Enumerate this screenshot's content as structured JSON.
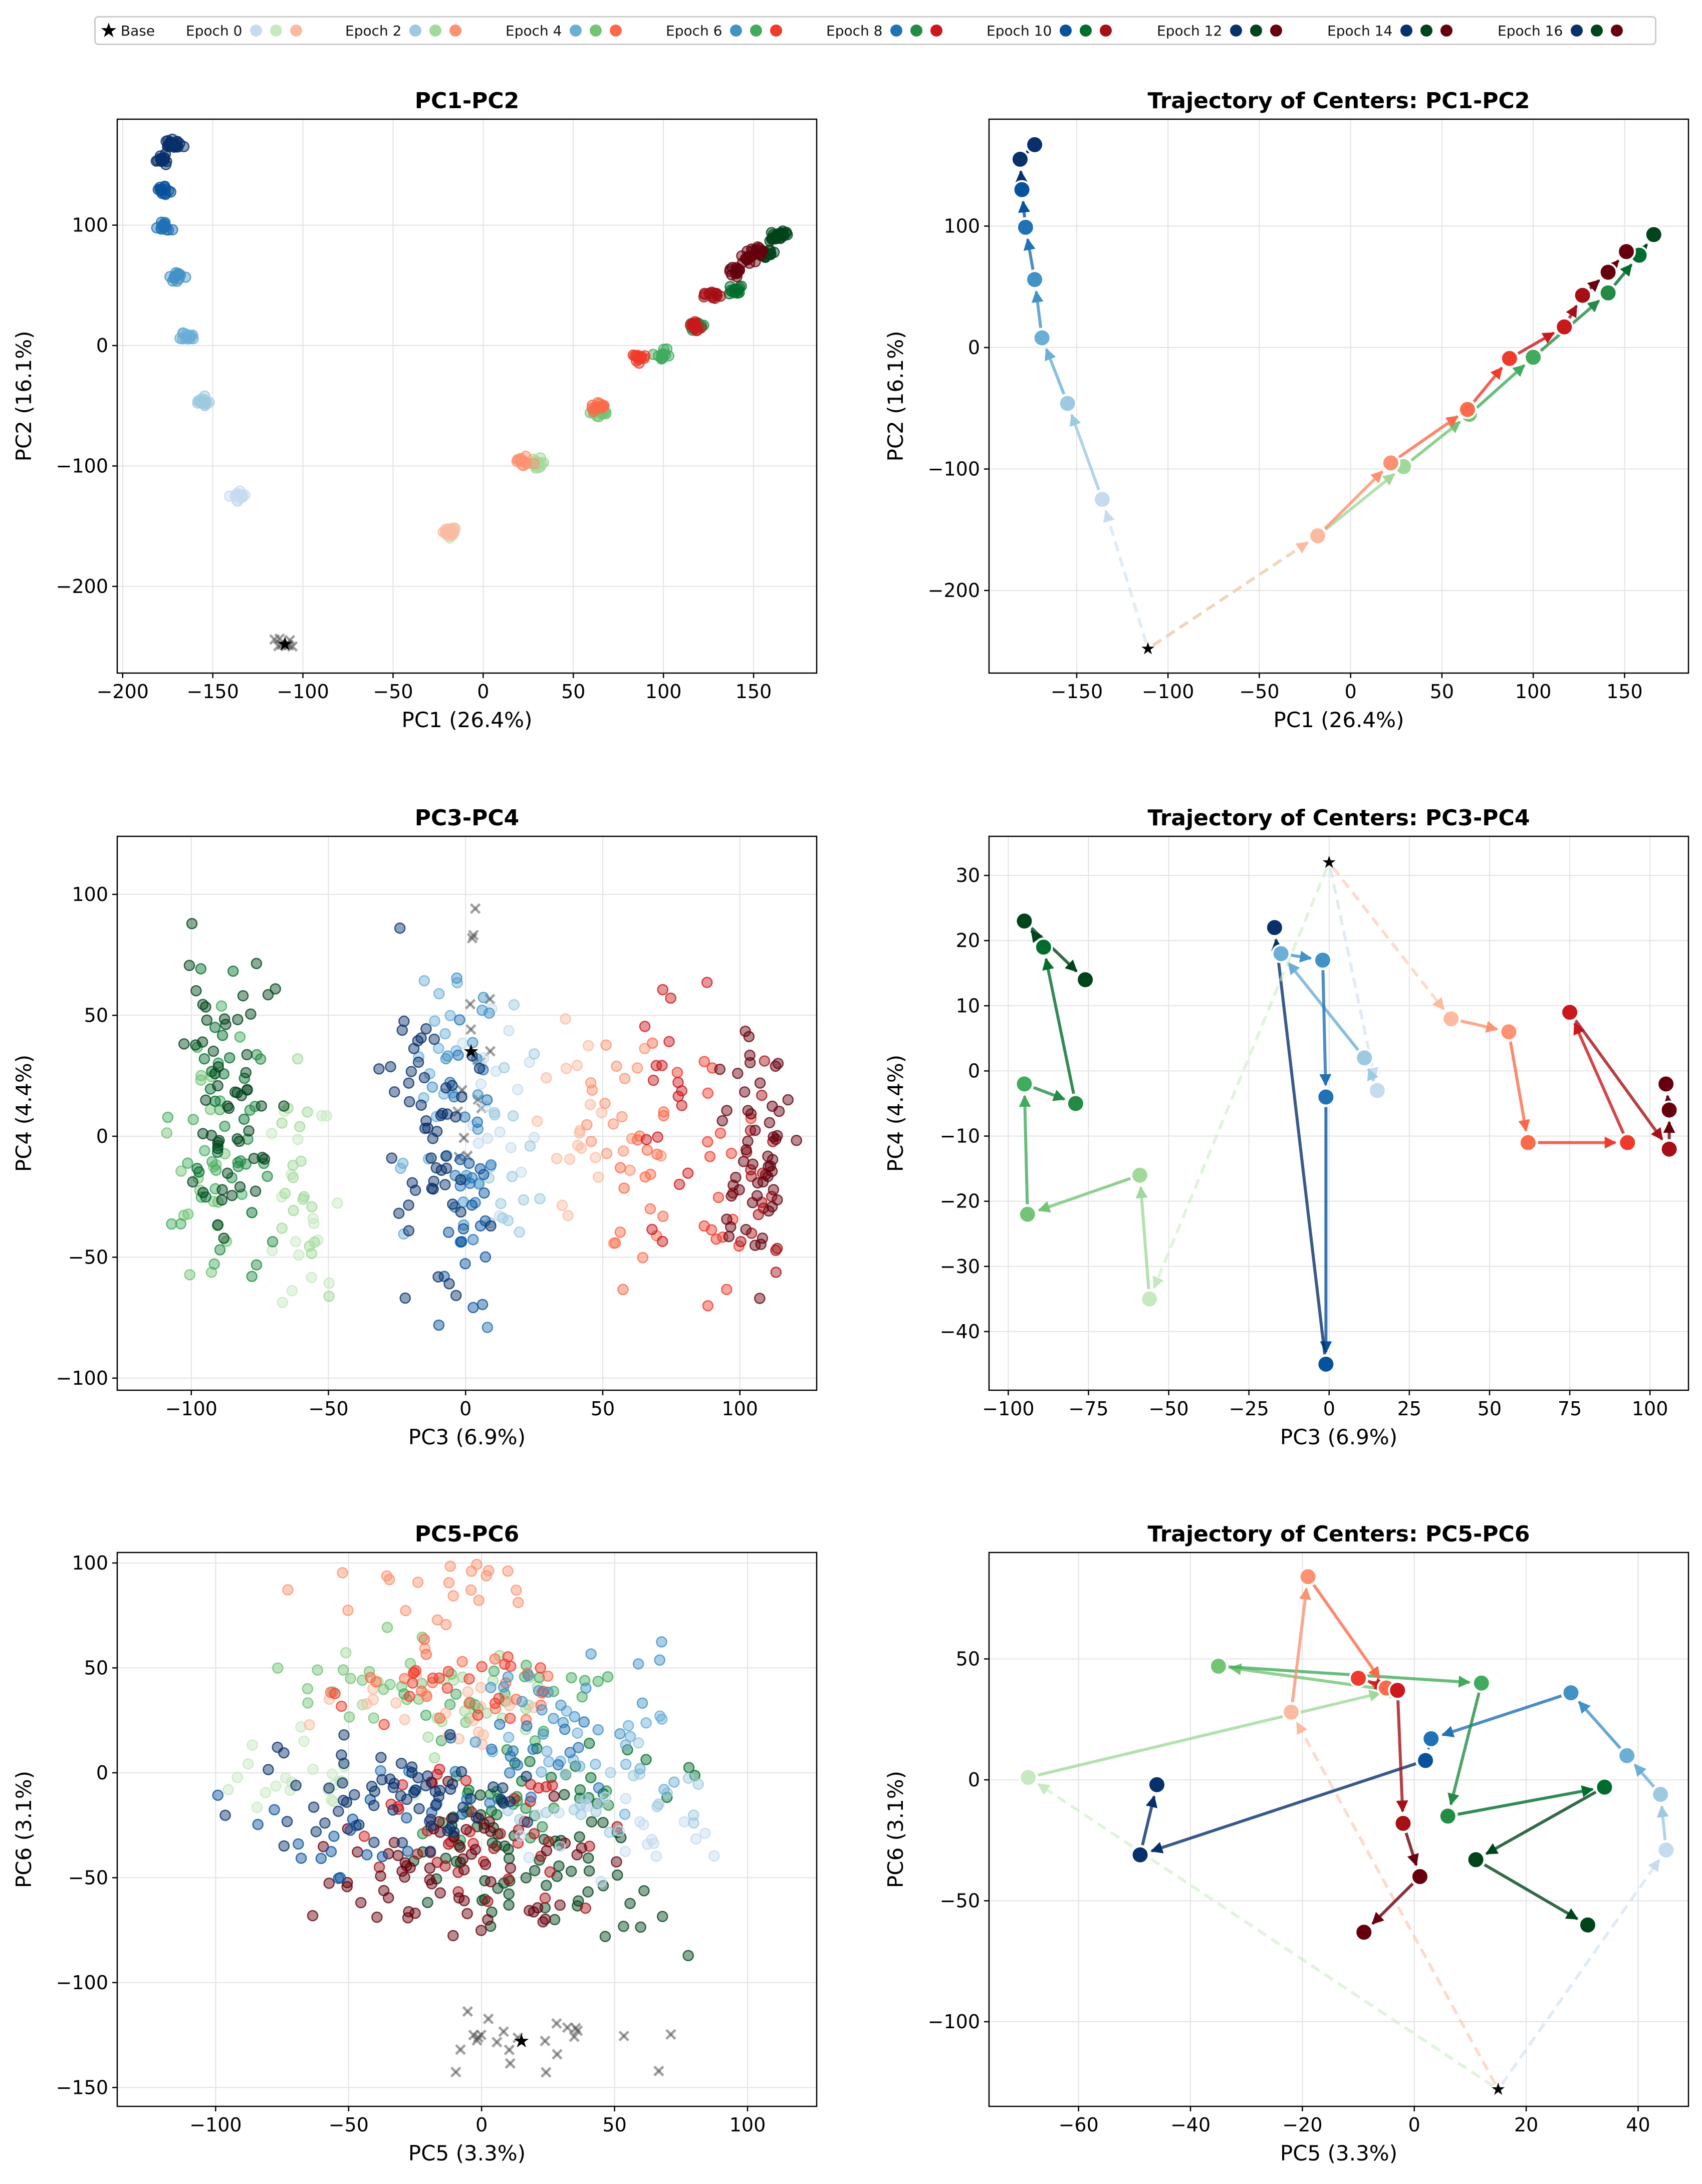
{
  "legend": {
    "base_label": "Base",
    "entries": [
      {
        "label": "Epoch 0",
        "colors": [
          "#c6dbef",
          "#c7e9c0",
          "#fcbba1"
        ]
      },
      {
        "label": "Epoch 2",
        "colors": [
          "#9ecae1",
          "#a1d99b",
          "#fc9272"
        ]
      },
      {
        "label": "Epoch 4",
        "colors": [
          "#6baed6",
          "#74c476",
          "#fb6a4a"
        ]
      },
      {
        "label": "Epoch 6",
        "colors": [
          "#4292c6",
          "#41ab5d",
          "#ef3b2c"
        ]
      },
      {
        "label": "Epoch 8",
        "colors": [
          "#2171b5",
          "#238b45",
          "#cb181d"
        ]
      },
      {
        "label": "Epoch 10",
        "colors": [
          "#08519c",
          "#006d2c",
          "#a50f15"
        ]
      },
      {
        "label": "Epoch 12",
        "colors": [
          "#08306b",
          "#00441b",
          "#67000d"
        ]
      },
      {
        "label": "Epoch 14",
        "colors": [
          "#08306b",
          "#00441b",
          "#67000d"
        ]
      },
      {
        "label": "Epoch 16",
        "colors": [
          "#08306b",
          "#00441b",
          "#67000d"
        ]
      }
    ]
  },
  "palettes": {
    "blue": [
      "#c6dbef",
      "#9ecae1",
      "#6baed6",
      "#4292c6",
      "#2171b5",
      "#08519c",
      "#08306b"
    ],
    "green": [
      "#c7e9c0",
      "#a1d99b",
      "#74c476",
      "#41ab5d",
      "#238b45",
      "#006d2c",
      "#00441b"
    ],
    "red": [
      "#fcbba1",
      "#fc9272",
      "#fb6a4a",
      "#ef3b2c",
      "#cb181d",
      "#a50f15",
      "#67000d"
    ],
    "base": "#555555"
  },
  "chart_data": [
    {
      "type": "scatter",
      "title": "PC1-PC2",
      "xlabel": "PC1 (26.4%)",
      "ylabel": "PC2 (16.1%)",
      "xlim": [
        -203,
        185
      ],
      "ylim": [
        -272,
        188
      ],
      "xticks": [
        -200,
        -150,
        -100,
        -50,
        0,
        50,
        100,
        150
      ],
      "yticks": [
        -200,
        -100,
        0,
        100
      ],
      "base": {
        "x": -110,
        "y": -248,
        "sx": 5,
        "sy": 6,
        "n": 8
      },
      "series": [
        {
          "name": "blue",
          "centers": [
            [
              -136,
              -125
            ],
            [
              -155,
              -46
            ],
            [
              -165,
              8
            ],
            [
              -170,
              57
            ],
            [
              -177,
              99
            ],
            [
              -178,
              130
            ],
            [
              -178,
              155
            ],
            [
              -173,
              166
            ],
            [
              -171,
              168
            ]
          ],
          "sx": 3,
          "sy": 3,
          "n": 14
        },
        {
          "name": "green",
          "centers": [
            [
              -18,
              -155
            ],
            [
              29,
              -98
            ],
            [
              65,
              -55
            ],
            [
              100,
              -8
            ],
            [
              118,
              17
            ],
            [
              140,
              45
            ],
            [
              158,
              76
            ],
            [
              162,
              90
            ],
            [
              166,
              92
            ]
          ],
          "sx": 3,
          "sy": 3,
          "n": 14
        },
        {
          "name": "red",
          "centers": [
            [
              -18,
              -155
            ],
            [
              22,
              -95
            ],
            [
              64,
              -51
            ],
            [
              87,
              -9
            ],
            [
              117,
              18
            ],
            [
              127,
              43
            ],
            [
              140,
              62
            ],
            [
              147,
              72
            ],
            [
              152,
              79
            ]
          ],
          "sx": 3,
          "sy": 3,
          "n": 14
        }
      ]
    },
    {
      "type": "line",
      "title": "Trajectory of Centers: PC1-PC2",
      "xlabel": "PC1 (26.4%)",
      "ylabel": "PC2 (16.1%)",
      "xlim": [
        -198,
        185
      ],
      "ylim": [
        -268,
        188
      ],
      "xticks": [
        -150,
        -100,
        -50,
        0,
        50,
        100,
        150
      ],
      "yticks": [
        -200,
        -100,
        0,
        100
      ],
      "base": [
        -111,
        -248
      ],
      "series": [
        {
          "name": "blue",
          "points": [
            [
              -136,
              -125
            ],
            [
              -155,
              -46
            ],
            [
              -169,
              8
            ],
            [
              -173,
              56
            ],
            [
              -178,
              99
            ],
            [
              -180,
              130
            ],
            [
              -181,
              155
            ],
            [
              -173,
              167
            ]
          ]
        },
        {
          "name": "green",
          "points": [
            [
              -18,
              -155
            ],
            [
              29,
              -98
            ],
            [
              65,
              -55
            ],
            [
              100,
              -8
            ],
            [
              141,
              45
            ],
            [
              158,
              76
            ],
            [
              166,
              93
            ]
          ]
        },
        {
          "name": "red",
          "points": [
            [
              -18,
              -155
            ],
            [
              22,
              -95
            ],
            [
              64,
              -51
            ],
            [
              87,
              -9
            ],
            [
              117,
              17
            ],
            [
              127,
              43
            ],
            [
              141,
              62
            ],
            [
              151,
              79
            ]
          ]
        }
      ]
    },
    {
      "type": "scatter",
      "title": "PC3-PC4",
      "xlabel": "PC3 (6.9%)",
      "ylabel": "PC4 (4.4%)",
      "xlim": [
        -127,
        128
      ],
      "ylim": [
        -105,
        124
      ],
      "xticks": [
        -100,
        -50,
        0,
        50,
        100
      ],
      "yticks": [
        -100,
        -50,
        0,
        50,
        100
      ],
      "base": {
        "x": 2,
        "y": 35,
        "sx": 4,
        "sy": 32,
        "n": 16
      },
      "series": [
        {
          "name": "blue",
          "centers": [
            [
              12,
              2
            ],
            [
              15,
              -3
            ],
            [
              -15,
              18
            ],
            [
              -1,
              17
            ],
            [
              -1,
              -4
            ],
            [
              -1,
              -45
            ],
            [
              -17,
              22
            ],
            [
              -15,
              0
            ],
            [
              -5,
              -10
            ]
          ],
          "sx": 9,
          "sy": 40,
          "n": 18
        },
        {
          "name": "green",
          "centers": [
            [
              -57,
              -35
            ],
            [
              -60,
              -16
            ],
            [
              -95,
              -22
            ],
            [
              -96,
              -2
            ],
            [
              -80,
              -5
            ],
            [
              -90,
              19
            ],
            [
              -96,
              23
            ],
            [
              -76,
              14
            ],
            [
              -85,
              0
            ]
          ],
          "sx": 9,
          "sy": 40,
          "n": 18
        },
        {
          "name": "red",
          "centers": [
            [
              37,
              8
            ],
            [
              55,
              6
            ],
            [
              61,
              -11
            ],
            [
              93,
              -12
            ],
            [
              75,
              9
            ],
            [
              106,
              -12
            ],
            [
              105,
              -3
            ],
            [
              105,
              -7
            ],
            [
              108,
              5
            ]
          ],
          "sx": 9,
          "sy": 40,
          "n": 18
        }
      ]
    },
    {
      "type": "line",
      "title": "Trajectory of Centers: PC3-PC4",
      "xlabel": "PC3 (6.9%)",
      "ylabel": "PC4 (4.4%)",
      "xlim": [
        -106,
        112
      ],
      "ylim": [
        -49,
        36
      ],
      "xticks": [
        -100,
        -75,
        -50,
        -25,
        0,
        25,
        50,
        75,
        100
      ],
      "yticks": [
        -40,
        -30,
        -20,
        -10,
        0,
        10,
        20,
        30
      ],
      "base": [
        0,
        32
      ],
      "series": [
        {
          "name": "blue",
          "points": [
            [
              15,
              -3
            ],
            [
              11,
              2
            ],
            [
              -15,
              18
            ],
            [
              -2,
              17
            ],
            [
              -1,
              -4
            ],
            [
              -1,
              -45
            ],
            [
              -17,
              22
            ]
          ]
        },
        {
          "name": "green",
          "points": [
            [
              -56,
              -35
            ],
            [
              -59,
              -16
            ],
            [
              -94,
              -22
            ],
            [
              -95,
              -2
            ],
            [
              -79,
              -5
            ],
            [
              -89,
              19
            ],
            [
              -95,
              23
            ],
            [
              -76,
              14
            ]
          ]
        },
        {
          "name": "red",
          "points": [
            [
              38,
              8
            ],
            [
              56,
              6
            ],
            [
              62,
              -11
            ],
            [
              93,
              -11
            ],
            [
              75,
              9
            ],
            [
              106,
              -12
            ],
            [
              106,
              -6
            ],
            [
              105,
              -2
            ]
          ]
        }
      ]
    },
    {
      "type": "scatter",
      "title": "PC5-PC6",
      "xlabel": "PC5 (3.3%)",
      "ylabel": "PC6 (3.1%)",
      "xlim": [
        -137,
        126
      ],
      "ylim": [
        -159,
        105
      ],
      "xticks": [
        -100,
        -50,
        0,
        50,
        100
      ],
      "yticks": [
        -150,
        -100,
        -50,
        0,
        50,
        100
      ],
      "base": {
        "x": 15,
        "y": -128,
        "sx": 35,
        "sy": 12,
        "n": 24
      },
      "series": [
        {
          "name": "blue",
          "centers": [
            [
              45,
              -28
            ],
            [
              44,
              -6
            ],
            [
              38,
              10
            ],
            [
              28,
              36
            ],
            [
              2,
              8
            ],
            [
              -49,
              -31
            ],
            [
              -46,
              -2
            ],
            [
              -30,
              -20
            ],
            [
              -10,
              -10
            ]
          ],
          "sx": 30,
          "sy": 16,
          "n": 22
        },
        {
          "name": "green",
          "centers": [
            [
              -69,
              1
            ],
            [
              -3,
              37
            ],
            [
              -35,
              47
            ],
            [
              12,
              40
            ],
            [
              6,
              -15
            ],
            [
              35,
              -3
            ],
            [
              11,
              -32
            ],
            [
              31,
              -60
            ],
            [
              20,
              -40
            ]
          ],
          "sx": 30,
          "sy": 16,
          "n": 22
        },
        {
          "name": "red",
          "centers": [
            [
              -22,
              28
            ],
            [
              -19,
              84
            ],
            [
              -5,
              38
            ],
            [
              -10,
              42
            ],
            [
              -2,
              -18
            ],
            [
              1,
              -39
            ],
            [
              -10,
              -62
            ],
            [
              -20,
              -50
            ],
            [
              -5,
              -30
            ]
          ],
          "sx": 30,
          "sy": 16,
          "n": 22
        }
      ]
    },
    {
      "type": "line",
      "title": "Trajectory of Centers: PC5-PC6",
      "xlabel": "PC5 (3.3%)",
      "ylabel": "PC6 (3.1%)",
      "xlim": [
        -76,
        49
      ],
      "ylim": [
        -135,
        94
      ],
      "xticks": [
        -60,
        -40,
        -20,
        0,
        20,
        40
      ],
      "yticks": [
        -100,
        -50,
        0,
        50
      ],
      "base": [
        15,
        -128
      ],
      "series": [
        {
          "name": "blue",
          "points": [
            [
              45,
              -29
            ],
            [
              44,
              -6
            ],
            [
              38,
              10
            ],
            [
              28,
              36
            ],
            [
              3,
              17
            ],
            [
              2,
              8
            ],
            [
              -49,
              -31
            ],
            [
              -46,
              -2
            ]
          ]
        },
        {
          "name": "green",
          "points": [
            [
              -69,
              1
            ],
            [
              -4,
              37
            ],
            [
              -35,
              47
            ],
            [
              12,
              40
            ],
            [
              6,
              -15
            ],
            [
              34,
              -3
            ],
            [
              11,
              -33
            ],
            [
              31,
              -60
            ]
          ]
        },
        {
          "name": "red",
          "points": [
            [
              -22,
              28
            ],
            [
              -19,
              84
            ],
            [
              -5,
              38
            ],
            [
              -10,
              42
            ],
            [
              -3,
              37
            ],
            [
              -2,
              -18
            ],
            [
              1,
              -40
            ],
            [
              -9,
              -63
            ]
          ]
        }
      ]
    }
  ]
}
